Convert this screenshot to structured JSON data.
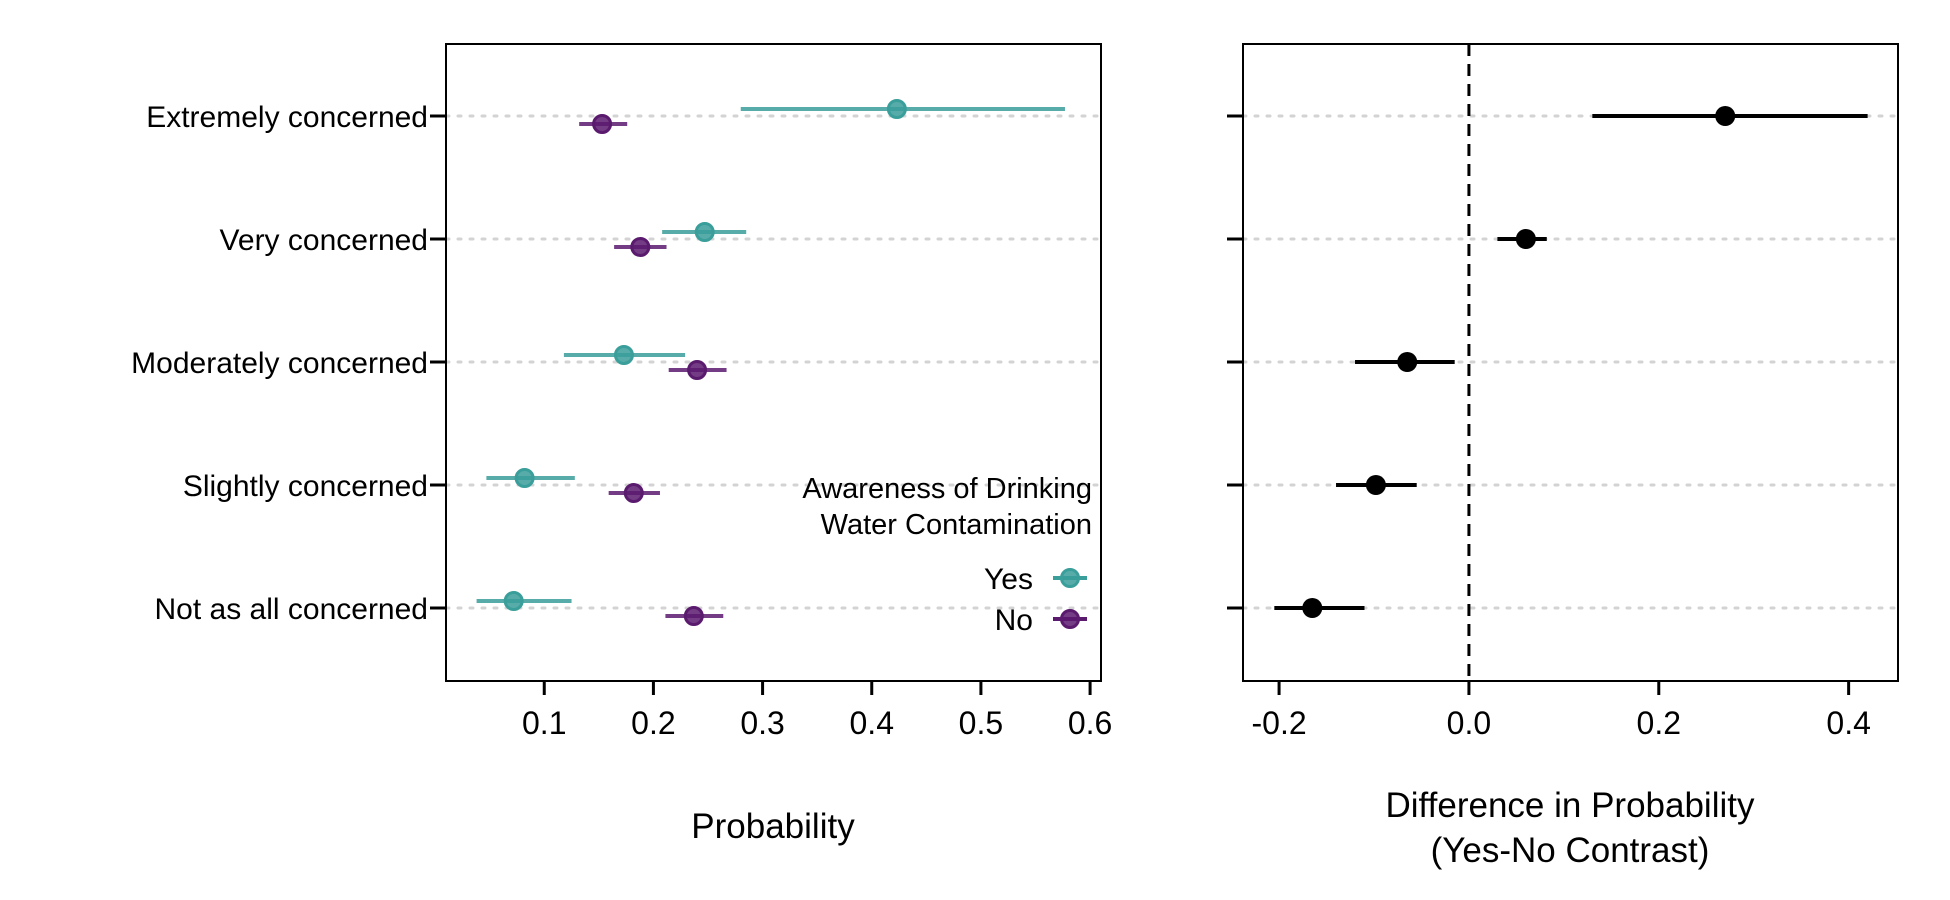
{
  "chart_data": [
    {
      "type": "scatter",
      "subtype": "dot-and-whisker",
      "xlabel": "Probability",
      "xticks": [
        "0.1",
        "0.2",
        "0.3",
        "0.4",
        "0.5",
        "0.6"
      ],
      "xlim": [
        0.01,
        0.61
      ],
      "categories": [
        "Extremely concerned",
        "Very concerned",
        "Moderately concerned",
        "Slightly concerned",
        "Not as all concerned"
      ],
      "legend": {
        "title_line1": "Awareness of Drinking",
        "title_line2": "Water Contamination",
        "placement": "bottom-right, inside plot"
      },
      "series": [
        {
          "name": "Yes",
          "color": "#3a9e9a",
          "estimates": [
            0.423,
            0.247,
            0.173,
            0.082,
            0.072
          ],
          "lower": [
            0.28,
            0.208,
            0.118,
            0.047,
            0.038
          ],
          "upper": [
            0.577,
            0.285,
            0.229,
            0.128,
            0.125
          ]
        },
        {
          "name": "No",
          "color": "#5a1a6e",
          "estimates": [
            0.153,
            0.188,
            0.24,
            0.182,
            0.237
          ],
          "lower": [
            0.132,
            0.164,
            0.214,
            0.159,
            0.211
          ],
          "upper": [
            0.176,
            0.212,
            0.267,
            0.206,
            0.264
          ]
        }
      ],
      "grid": "horizontal dotted"
    },
    {
      "type": "scatter",
      "subtype": "dot-and-whisker",
      "xlabel_line1": "Difference in Probability",
      "xlabel_line2": "(Yes-No Contrast)",
      "xticks": [
        "-0.2",
        "0.0",
        "0.2",
        "0.4"
      ],
      "xlim": [
        -0.238,
        0.452
      ],
      "reference_line": 0.0,
      "categories": [
        "Extremely concerned",
        "Very concerned",
        "Moderately concerned",
        "Slightly concerned",
        "Not as all concerned"
      ],
      "series": [
        {
          "color": "#000000",
          "estimates": [
            0.27,
            0.06,
            -0.065,
            -0.098,
            -0.165
          ],
          "lower": [
            0.13,
            0.03,
            -0.12,
            -0.14,
            -0.205
          ],
          "upper": [
            0.42,
            0.082,
            -0.015,
            -0.055,
            -0.11
          ]
        }
      ],
      "grid": "horizontal dotted"
    }
  ]
}
